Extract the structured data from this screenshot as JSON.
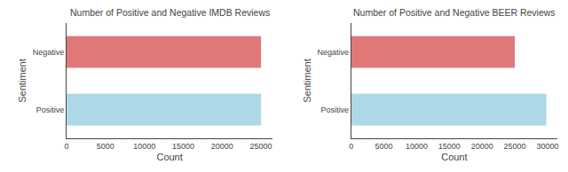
{
  "chart_data": [
    {
      "type": "bar",
      "orientation": "horizontal",
      "title": "Number of Positive and Negative IMDB Reviews",
      "categories": [
        "Positive",
        "Negative"
      ],
      "values": [
        25000,
        25000
      ],
      "colors": [
        "#add8e6",
        "#e07878"
      ],
      "xlabel": "Count",
      "ylabel": "Sentiment",
      "xlim": [
        0,
        26500
      ],
      "xticks": [
        0,
        5000,
        10000,
        15000,
        20000,
        25000
      ],
      "grid": false
    },
    {
      "type": "bar",
      "orientation": "horizontal",
      "title": "Number of Positive and Negative BEER Reviews",
      "categories": [
        "Positive",
        "Negative"
      ],
      "values": [
        29800,
        25000
      ],
      "colors": [
        "#add8e6",
        "#e07878"
      ],
      "xlabel": "Count",
      "ylabel": "Sentiment",
      "xlim": [
        0,
        31500
      ],
      "xticks": [
        0,
        5000,
        10000,
        15000,
        20000,
        25000,
        30000
      ],
      "grid": false
    }
  ]
}
